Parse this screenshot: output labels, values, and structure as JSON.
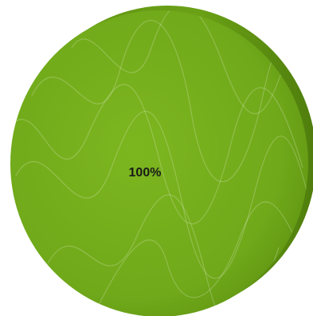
{
  "chart_data": {
    "type": "pie",
    "title": "",
    "categories": [
      ""
    ],
    "values": [
      100
    ],
    "data_labels": [
      "100%"
    ],
    "colors": [
      "#74ad1a"
    ],
    "style": "3d-tilted",
    "legend": "none"
  }
}
